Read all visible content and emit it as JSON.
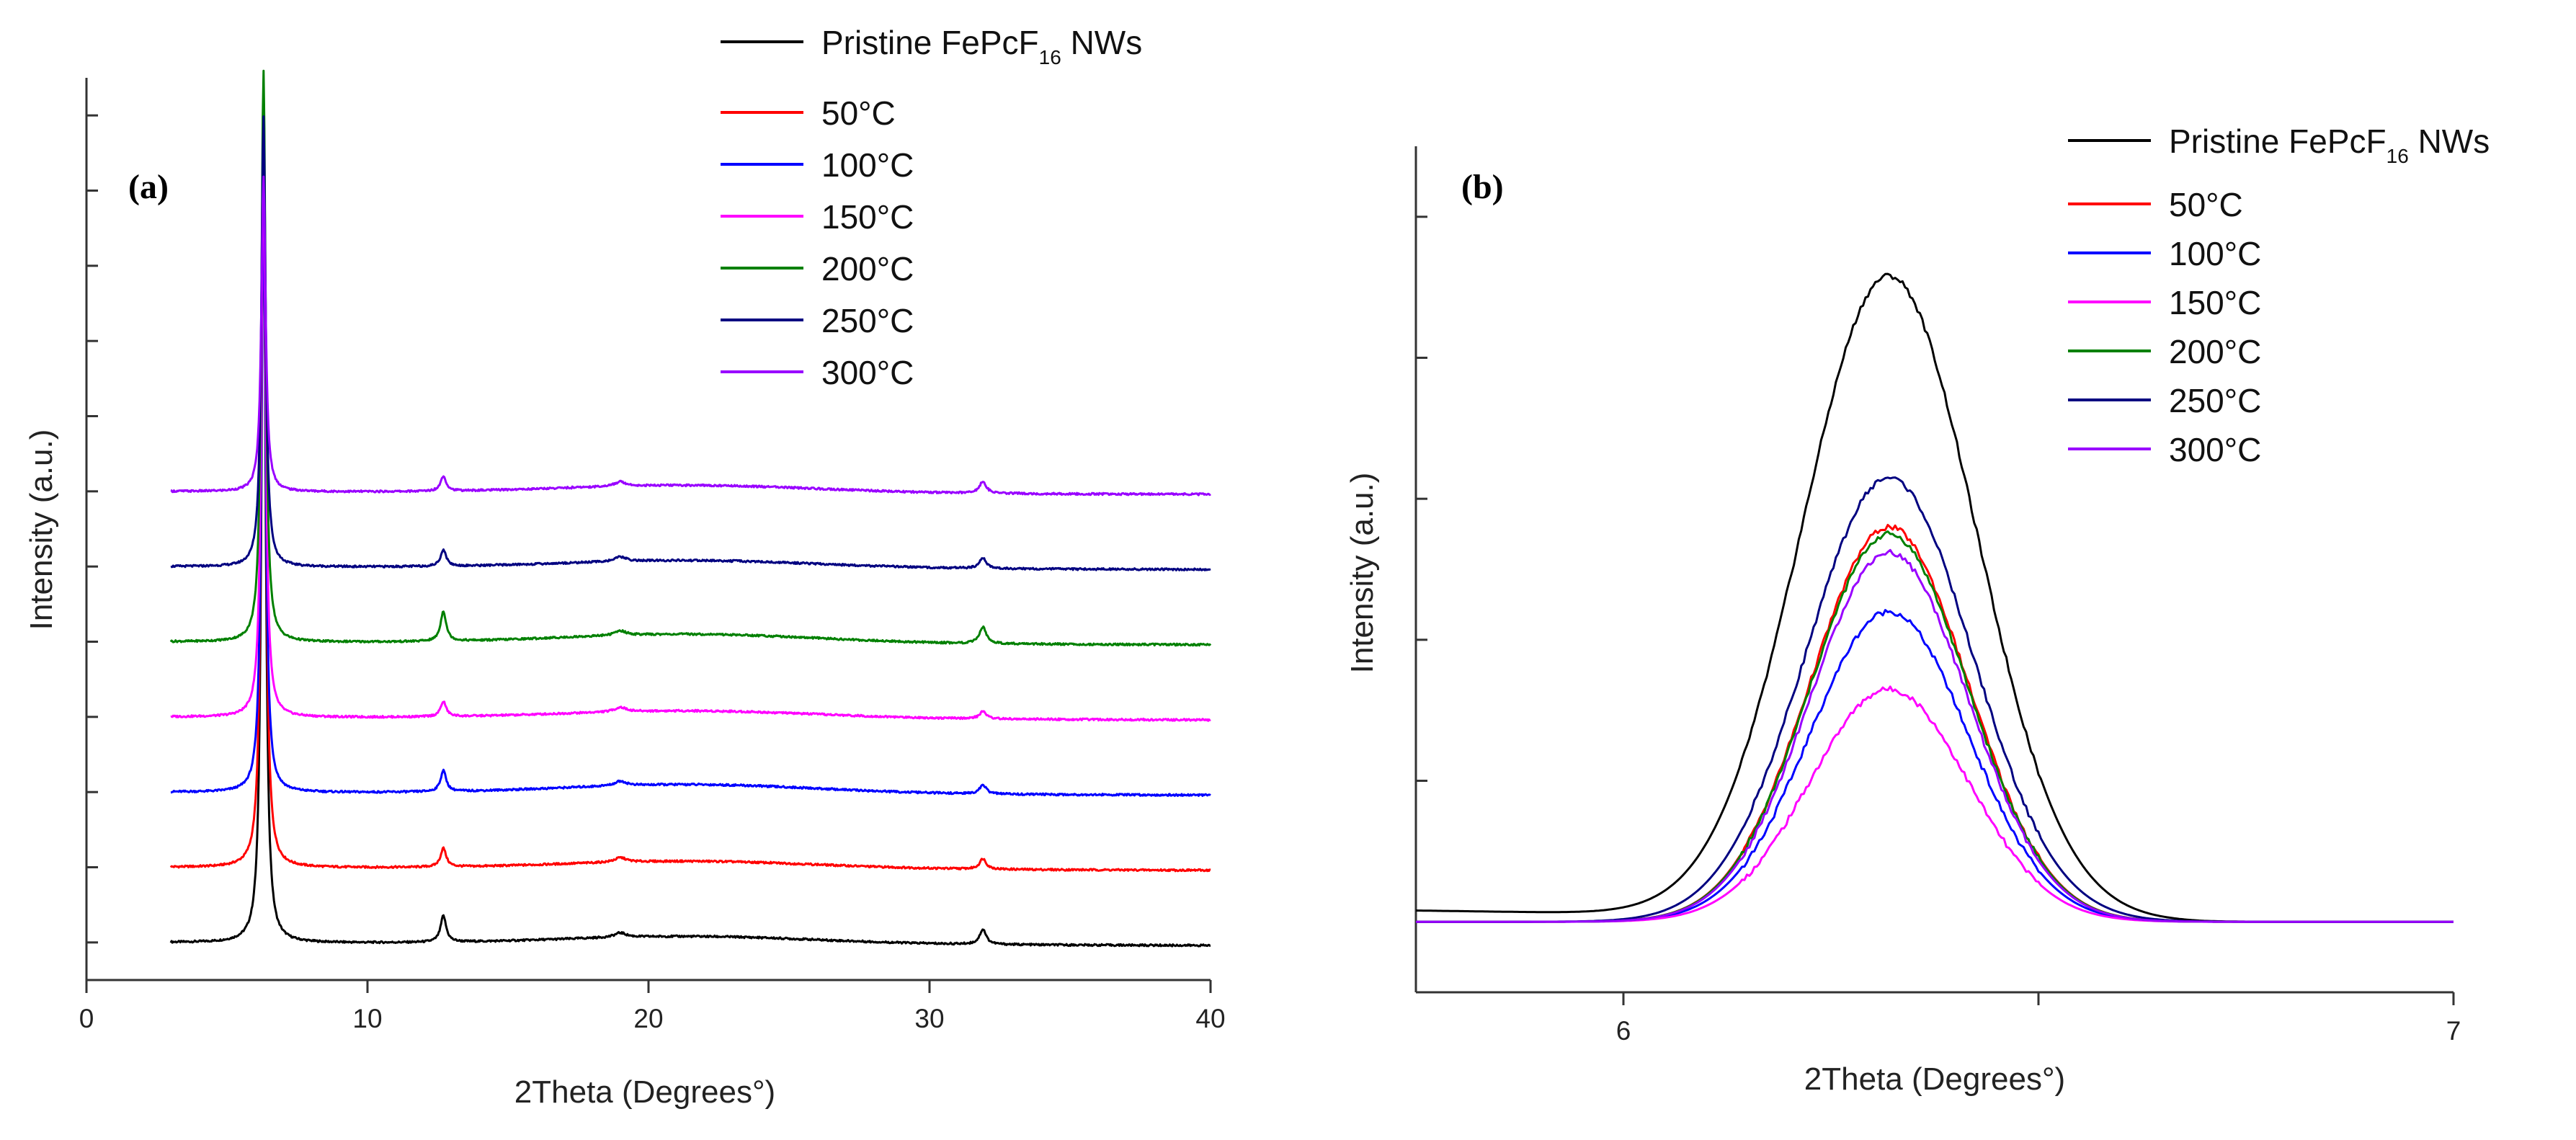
{
  "chart_data": [
    {
      "type": "line",
      "panel_label": "(a)",
      "xlabel": "2Theta (Degrees°)",
      "ylabel": "Intensity (a.u.)",
      "xlim": [
        0,
        40
      ],
      "ylim": [
        -0.5,
        11.5
      ],
      "x_ticks": [
        "0",
        "10",
        "20",
        "30",
        "40"
      ],
      "legend": {
        "position": "top-right",
        "title_parts": [
          "Pristine FePcF",
          "16",
          " NWs"
        ]
      },
      "peak_positions": [
        6.3,
        12.7,
        19.0,
        31.9
      ],
      "series": [
        {
          "name": "Pristine FePcF16 NWs",
          "color": "#000000",
          "baseline": 0.0,
          "main_peak": 10.2,
          "p12": 0.35,
          "p32": 0.2,
          "hump": 0.1
        },
        {
          "name": "50°C",
          "color": "#ff0000",
          "baseline": 1.0,
          "main_peak": 9.9,
          "p12": 0.25,
          "p32": 0.14,
          "hump": 0.1
        },
        {
          "name": "100°C",
          "color": "#0000ff",
          "baseline": 2.0,
          "main_peak": 8.0,
          "p12": 0.28,
          "p32": 0.12,
          "hump": 0.12
        },
        {
          "name": "150°C",
          "color": "#ff00ff",
          "baseline": 3.0,
          "main_peak": 7.5,
          "p12": 0.2,
          "p32": 0.1,
          "hump": 0.1
        },
        {
          "name": "200°C",
          "color": "#008000",
          "baseline": 4.0,
          "main_peak": 7.6,
          "p12": 0.4,
          "p32": 0.22,
          "hump": 0.12
        },
        {
          "name": "250°C",
          "color": "#000080",
          "baseline": 5.0,
          "main_peak": 6.0,
          "p12": 0.22,
          "p32": 0.14,
          "hump": 0.1
        },
        {
          "name": "300°C",
          "color": "#9900ff",
          "baseline": 6.0,
          "main_peak": 4.2,
          "p12": 0.2,
          "p32": 0.16,
          "hump": 0.1
        }
      ]
    },
    {
      "type": "line",
      "panel_label": "(b)",
      "xlabel": "2Theta (Degrees°)",
      "ylabel": "Intensity (a.u.)",
      "xlim": [
        5.75,
        7.0
      ],
      "ylim": [
        -0.5,
        5.5
      ],
      "x_ticks": [
        "6",
        "7"
      ],
      "legend": {
        "position": "top-right",
        "title_parts": [
          "Pristine FePcF",
          "16",
          " NWs"
        ]
      },
      "peak_center": 6.32,
      "series": [
        {
          "name": "Pristine FePcF16 NWs",
          "color": "#000000",
          "peak": 4.55,
          "width": 0.105,
          "base": 0.08
        },
        {
          "name": "50°C",
          "color": "#ff0000",
          "peak": 2.8,
          "width": 0.095,
          "base": 0.0
        },
        {
          "name": "100°C",
          "color": "#0000ff",
          "peak": 2.2,
          "width": 0.095,
          "base": 0.0
        },
        {
          "name": "150°C",
          "color": "#ff00ff",
          "peak": 1.65,
          "width": 0.095,
          "base": 0.0
        },
        {
          "name": "200°C",
          "color": "#008000",
          "peak": 2.75,
          "width": 0.095,
          "base": 0.0
        },
        {
          "name": "250°C",
          "color": "#000080",
          "peak": 3.15,
          "width": 0.1,
          "base": 0.0
        },
        {
          "name": "300°C",
          "color": "#9900ff",
          "peak": 2.62,
          "width": 0.095,
          "base": 0.0
        }
      ]
    }
  ]
}
